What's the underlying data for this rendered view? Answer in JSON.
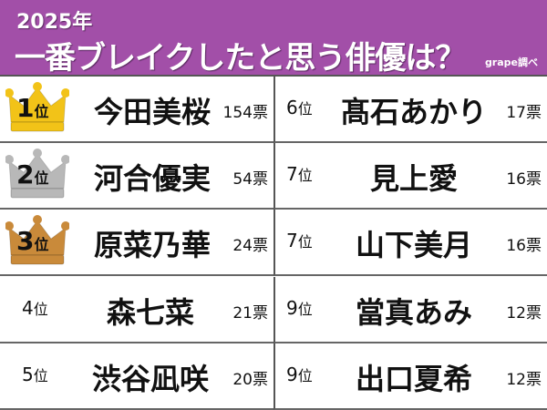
{
  "header": {
    "year": "2025年",
    "title": "一番ブレイクしたと思う俳優は？",
    "source": "grape調べ",
    "bg_color": "#a24fa8"
  },
  "left": [
    {
      "rank": "1",
      "suffix": "位",
      "name": "今田美桜",
      "votes": "154票",
      "crown": "gold",
      "crown_color": "#f2c318"
    },
    {
      "rank": "2",
      "suffix": "位",
      "name": "河合優実",
      "votes": "54票",
      "crown": "silver",
      "crown_color": "#b8b8b8"
    },
    {
      "rank": "3",
      "suffix": "位",
      "name": "原菜乃華",
      "votes": "24票",
      "crown": "bronze",
      "crown_color": "#c98a3a"
    },
    {
      "rank": "4",
      "suffix": "位",
      "name": "森七菜",
      "votes": "21票"
    },
    {
      "rank": "5",
      "suffix": "位",
      "name": "渋谷凪咲",
      "votes": "20票"
    }
  ],
  "right": [
    {
      "rank": "6",
      "suffix": "位",
      "name": "髙石あかり",
      "votes": "17票"
    },
    {
      "rank": "7",
      "suffix": "位",
      "name": "見上愛",
      "votes": "16票"
    },
    {
      "rank": "7",
      "suffix": "位",
      "name": "山下美月",
      "votes": "16票"
    },
    {
      "rank": "9",
      "suffix": "位",
      "name": "當真あみ",
      "votes": "12票"
    },
    {
      "rank": "9",
      "suffix": "位",
      "name": "出口夏希",
      "votes": "12票"
    }
  ]
}
